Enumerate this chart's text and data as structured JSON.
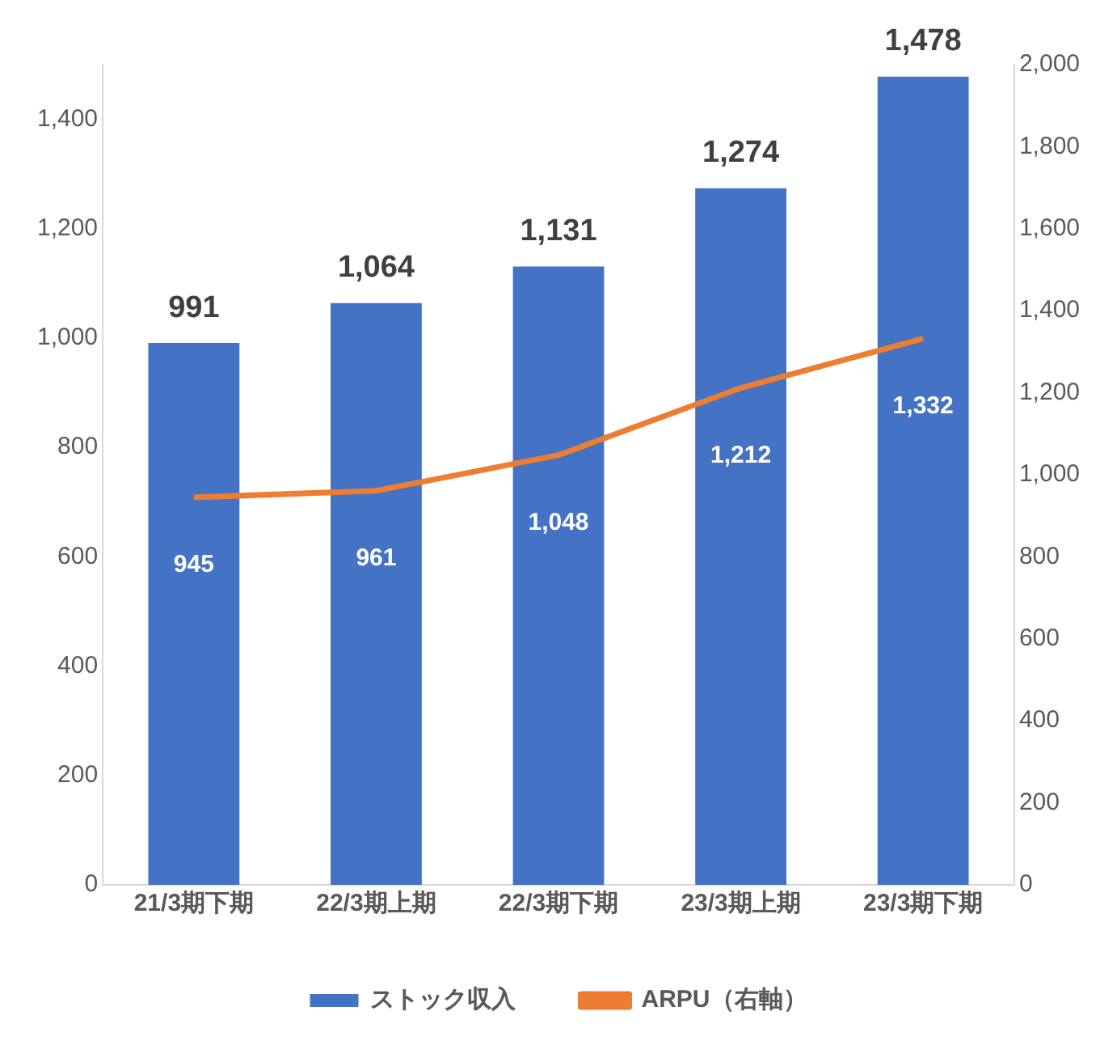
{
  "chart_data": {
    "type": "bar",
    "categories": [
      "21/3期下期",
      "22/3期上期",
      "22/3期下期",
      "23/3期上期",
      "23/3期下期"
    ],
    "series": [
      {
        "name": "ストック収入",
        "color": "#4472c4",
        "values": [
          991,
          1064,
          1131,
          1274,
          1478
        ],
        "value_labels": [
          "991",
          "1,064",
          "1,131",
          "1,274",
          "1,478"
        ]
      },
      {
        "name": "ARPU（右軸）",
        "type": "line",
        "axis": "y2",
        "color": "#ed7d31",
        "values": [
          945,
          961,
          1048,
          1212,
          1332
        ],
        "value_labels": [
          "945",
          "961",
          "1,048",
          "1,212",
          "1,332"
        ]
      }
    ],
    "ylim": [
      0,
      1500
    ],
    "yticks": [
      0,
      200,
      400,
      600,
      800,
      {
        "value": 1000,
        "label": "1,000"
      },
      {
        "value": 1200,
        "label": "1,200"
      },
      {
        "value": 1400,
        "label": "1,400"
      }
    ],
    "y2lim": [
      0,
      2000
    ],
    "y2ticks": [
      0,
      200,
      400,
      600,
      800,
      {
        "value": 1000,
        "label": "1,000"
      },
      {
        "value": 1200,
        "label": "1,200"
      },
      {
        "value": 1400,
        "label": "1,400"
      },
      {
        "value": 1600,
        "label": "1,600"
      },
      {
        "value": 1800,
        "label": "1,800"
      },
      {
        "value": 2000,
        "label": "2,000"
      }
    ],
    "grid": false,
    "legend": "bottom",
    "marker": "none",
    "line_style": "solid"
  }
}
